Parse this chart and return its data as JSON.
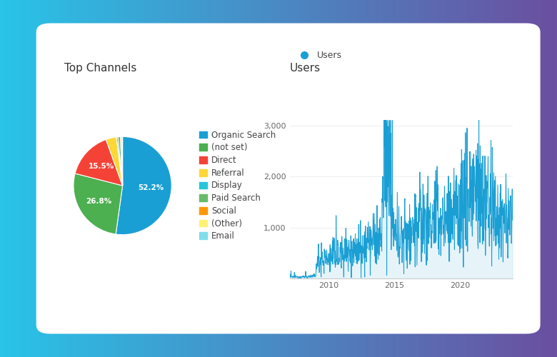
{
  "background_grad_left": "#29c4e8",
  "background_grad_right": "#6b4fa0",
  "background_card": "#ffffff",
  "pie_title": "Top Channels",
  "pie_labels": [
    "Organic Search",
    "(not set)",
    "Direct",
    "Referral",
    "Display",
    "Paid Search",
    "Social",
    "(Other)",
    "Email"
  ],
  "pie_sizes": [
    52.2,
    26.8,
    15.5,
    3.5,
    0.5,
    0.8,
    0.4,
    0.2,
    0.1
  ],
  "pie_colors": [
    "#1a9fd4",
    "#4caf50",
    "#f44336",
    "#fdd835",
    "#26c6da",
    "#66bb6a",
    "#ff9800",
    "#fff176",
    "#80deea"
  ],
  "line_title": "Users",
  "line_color": "#1a9fd4",
  "line_fill_color": "#c8e8f5",
  "ytick_labels": [
    "1,000",
    "2,000",
    "3,000"
  ],
  "ytick_values": [
    1000,
    2000,
    3000
  ],
  "xtick_labels": [
    "2010",
    "2015",
    "2020"
  ],
  "xtick_values": [
    2010,
    2015,
    2020
  ],
  "legend_marker_color": "#1a9fd4",
  "legend_label": "Users",
  "title_fontsize": 11,
  "tick_fontsize": 8,
  "legend_fontsize": 8.5
}
